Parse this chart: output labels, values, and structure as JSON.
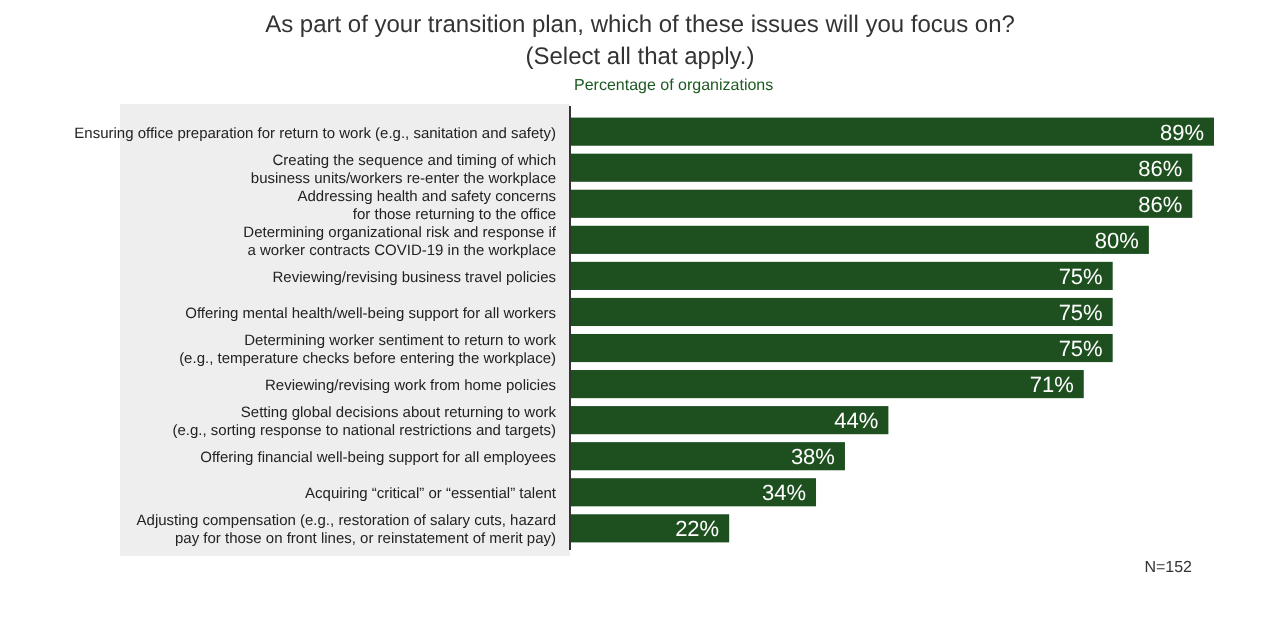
{
  "chart_data": {
    "type": "bar",
    "orientation": "horizontal",
    "title": "As part of your transition plan, which of these issues will you focus on?",
    "subtitle": "(Select all that apply.)",
    "xlabel": "Percentage of organizations",
    "categories": [
      "Ensuring office preparation for return to work (e.g., sanitation and safety)",
      "Creating the sequence and timing of which\nbusiness units/workers re-enter the workplace",
      "Addressing health and safety concerns\nfor those returning to the office",
      "Determining organizational risk and response if\na worker contracts COVID-19 in the workplace",
      "Reviewing/revising business travel policies",
      "Offering mental health/well-being support for all workers",
      "Determining worker sentiment to return to work\n(e.g., temperature checks before entering the workplace)",
      "Reviewing/revising work from home policies",
      "Setting global decisions about returning to work\n(e.g., sorting response to national restrictions and targets)",
      "Offering financial well-being support for all employees",
      "Acquiring “critical” or “essential” talent",
      "Adjusting compensation (e.g., restoration of salary cuts, hazard\npay for those on front lines, or reinstatement of merit pay)"
    ],
    "values": [
      89,
      86,
      86,
      80,
      75,
      75,
      75,
      71,
      44,
      38,
      34,
      22
    ],
    "color": "#1d4f1f",
    "value_labels": [
      "89%",
      "86%",
      "86%",
      "80%",
      "75%",
      "75%",
      "75%",
      "71%",
      "44%",
      "38%",
      "34%",
      "22%"
    ],
    "annotations": [
      "N=152"
    ]
  }
}
